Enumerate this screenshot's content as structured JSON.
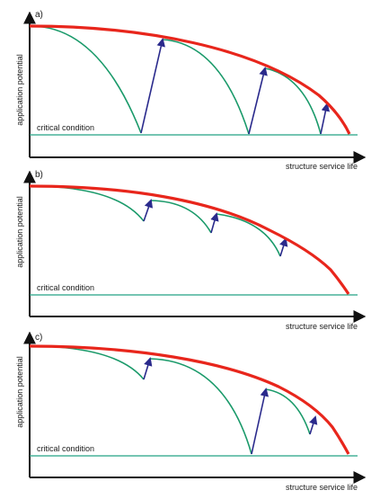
{
  "colors": {
    "envelope": "#e8261c",
    "degradation": "#1a9a6a",
    "repair_arrow": "#2a2a8c",
    "critical_line": "#23a283",
    "axis": "#111111"
  },
  "panels": [
    {
      "label": "a)",
      "y_axis_label": "application potential",
      "x_axis_label": "structure service life",
      "critical_label": "critical condition",
      "repair_count": 3
    },
    {
      "label": "b)",
      "y_axis_label": "application potential",
      "x_axis_label": "structure service life",
      "critical_label": "critical condition",
      "repair_count": 3
    },
    {
      "label": "c)",
      "y_axis_label": "application potential",
      "x_axis_label": "structure service life",
      "critical_label": "critical condition",
      "repair_count": 3
    }
  ]
}
